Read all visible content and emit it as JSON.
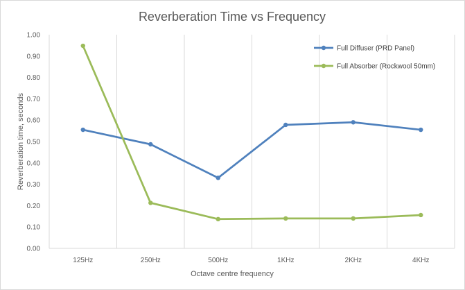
{
  "chart_data": {
    "type": "line",
    "title": "Reverberation Time vs Frequency",
    "xlabel": "Octave centre frequency",
    "ylabel": "Reverberation time, seconds",
    "categories": [
      "125Hz",
      "250Hz",
      "500Hz",
      "1KHz",
      "2KHz",
      "4KHz"
    ],
    "ylim": [
      0,
      1
    ],
    "yticks": [
      "0.00",
      "0.10",
      "0.20",
      "0.30",
      "0.40",
      "0.50",
      "0.60",
      "0.70",
      "0.80",
      "0.90",
      "1.00"
    ],
    "grid": "vertical",
    "legend_position": "top-right",
    "series": [
      {
        "name": "Full Diffuser (PRD Panel)",
        "color": "#4f81bd",
        "values": [
          0.555,
          0.487,
          0.33,
          0.578,
          0.59,
          0.555
        ]
      },
      {
        "name": "Full Absorber (Rockwool 50mm)",
        "color": "#9bbb59",
        "values": [
          0.948,
          0.213,
          0.137,
          0.14,
          0.14,
          0.156
        ]
      }
    ]
  }
}
